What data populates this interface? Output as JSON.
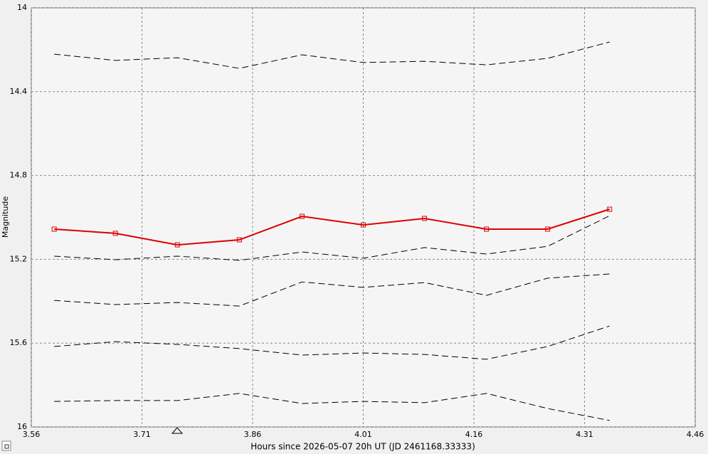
{
  "chart_data": {
    "type": "line",
    "xlabel": "Hours since 2026-05-07 20h UT (JD 2461168.33333)",
    "ylabel": "Magnitude",
    "x": [
      3.591,
      3.674,
      3.758,
      3.842,
      3.927,
      4.01,
      4.093,
      4.177,
      4.26,
      4.344
    ],
    "series": [
      {
        "color": "#000000",
        "line_style": "dashed",
        "markers": false,
        "values": [
          14.221,
          14.251,
          14.238,
          14.289,
          14.224,
          14.261,
          14.255,
          14.272,
          14.241,
          14.163
        ]
      },
      {
        "color": "#000000",
        "line_style": "dashed",
        "markers": false,
        "values": [
          15.185,
          15.202,
          15.185,
          15.205,
          15.165,
          15.195,
          15.144,
          15.175,
          15.138,
          14.992
        ]
      },
      {
        "color": "#000000",
        "line_style": "dashed",
        "markers": false,
        "values": [
          15.396,
          15.416,
          15.406,
          15.423,
          15.308,
          15.334,
          15.311,
          15.372,
          15.29,
          15.27
        ]
      },
      {
        "color": "#000000",
        "line_style": "dashed",
        "markers": false,
        "values": [
          15.616,
          15.593,
          15.606,
          15.626,
          15.657,
          15.647,
          15.654,
          15.677,
          15.616,
          15.518
        ]
      },
      {
        "color": "#000000",
        "line_style": "dashed",
        "markers": false,
        "values": [
          15.878,
          15.874,
          15.874,
          15.84,
          15.888,
          15.878,
          15.884,
          15.84,
          15.912,
          15.969
        ]
      },
      {
        "color": "#dd0000",
        "line_style": "solid",
        "markers": true,
        "values": [
          15.056,
          15.076,
          15.131,
          15.107,
          14.995,
          15.036,
          15.005,
          15.056,
          15.056,
          14.961
        ]
      }
    ],
    "xlim": [
      3.56,
      4.46
    ],
    "xticks": [
      3.56,
      3.71,
      3.86,
      4.01,
      4.16,
      4.31,
      4.46
    ],
    "ylim": [
      16,
      14
    ],
    "yticks": [
      14,
      14.4,
      14.8,
      15.2,
      15.6,
      16
    ],
    "y_inverted": true,
    "grid": true
  }
}
